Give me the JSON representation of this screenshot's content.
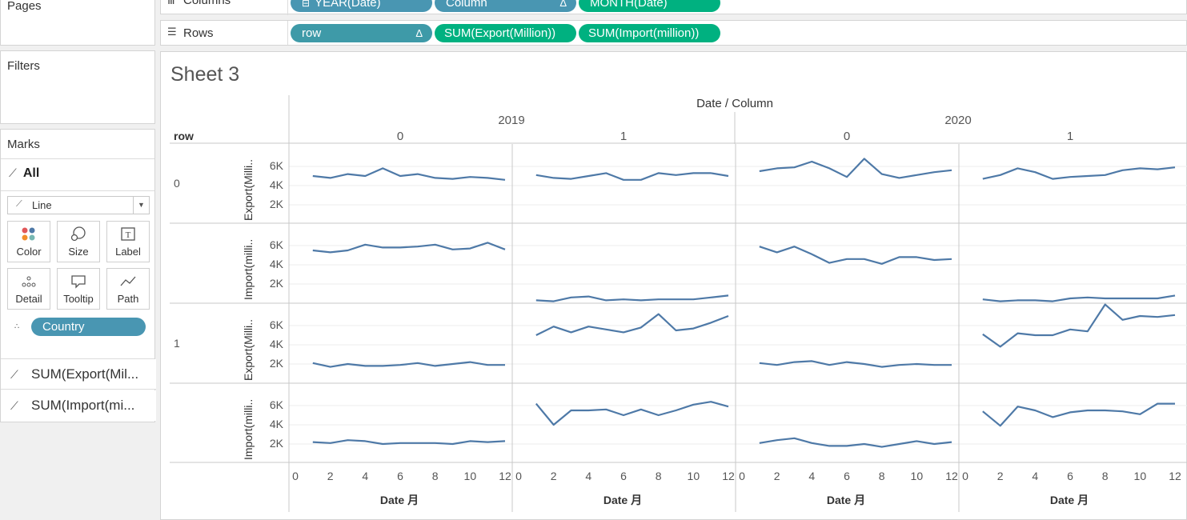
{
  "left_panel": {
    "pages_title": "Pages",
    "filters_title": "Filters",
    "marks_title": "Marks",
    "marks_all": "All",
    "mark_type": "Line",
    "buttons": [
      "Color",
      "Size",
      "Label",
      "Detail",
      "Tooltip",
      "Path"
    ],
    "detail_pill": "Country",
    "measure_items": [
      "SUM(Export(Mil...",
      "SUM(Import(mi..."
    ]
  },
  "shelves": {
    "columns_label": "Columns",
    "columns_pills": [
      "YEAR(Date)",
      "Column",
      "MONTH(Date)"
    ],
    "rows_label": "Rows",
    "rows_pills": [
      "row",
      "SUM(Export(Million))",
      "SUM(Import(million))"
    ],
    "delta_glyph": "Δ"
  },
  "sheet": {
    "title": "Sheet 3",
    "top_header": "Date / Column",
    "years": [
      "2019",
      "2020"
    ],
    "columns": [
      "0",
      "1",
      "0",
      "1"
    ],
    "row_header": "row",
    "rows": [
      "0",
      "1"
    ],
    "axis_titles": [
      "Export(Milli..",
      "Import(milli..",
      "Export(Milli..",
      "Import(milli.."
    ],
    "y_ticks": [
      "6K",
      "4K",
      "2K"
    ],
    "x_ticks": [
      "0",
      "2",
      "4",
      "6",
      "8",
      "10",
      "12"
    ],
    "x_axis_label": "Date 月"
  },
  "colors": {
    "line": "#4e79a7",
    "dimension_pill": "#4996b2",
    "measure_pill": "#00b180"
  },
  "chart_data": {
    "type": "line",
    "x_unit": "month",
    "x": [
      1,
      2,
      3,
      4,
      5,
      6,
      7,
      8,
      9,
      10,
      11,
      12
    ],
    "xlim": [
      0,
      12
    ],
    "panels": [
      {
        "row": "0",
        "measure": "Export",
        "year": "2019",
        "column": "0",
        "values": [
          5000,
          4800,
          5200,
          5000,
          5800,
          5000,
          5200,
          4800,
          4700,
          4900,
          4800,
          4600
        ]
      },
      {
        "row": "0",
        "measure": "Export",
        "year": "2019",
        "column": "1",
        "values": [
          5100,
          4800,
          4700,
          5000,
          5300,
          4600,
          4600,
          5300,
          5100,
          5300,
          5300,
          5000
        ]
      },
      {
        "row": "0",
        "measure": "Export",
        "year": "2020",
        "column": "0",
        "values": [
          5500,
          5800,
          5900,
          6500,
          5800,
          4900,
          6800,
          5200,
          4800,
          5100,
          5400,
          5600
        ]
      },
      {
        "row": "0",
        "measure": "Export",
        "year": "2020",
        "column": "1",
        "values": [
          4700,
          5100,
          5800,
          5400,
          4700,
          4900,
          5000,
          5100,
          5600,
          5800,
          5700,
          5900
        ]
      },
      {
        "row": "0",
        "measure": "Import",
        "year": "2019",
        "column": "0",
        "values": [
          5500,
          5300,
          5500,
          6100,
          5800,
          5800,
          5900,
          6100,
          5600,
          5700,
          6300,
          5600
        ]
      },
      {
        "row": "0",
        "measure": "Import",
        "year": "2019",
        "column": "1",
        "values": [
          300,
          200,
          600,
          700,
          300,
          400,
          300,
          400,
          400,
          400,
          600,
          800
        ]
      },
      {
        "row": "0",
        "measure": "Import",
        "year": "2020",
        "column": "0",
        "values": [
          5900,
          5300,
          5900,
          5100,
          4200,
          4600,
          4600,
          4100,
          4800,
          4800,
          4500,
          4600
        ]
      },
      {
        "row": "0",
        "measure": "Import",
        "year": "2020",
        "column": "1",
        "values": [
          400,
          200,
          300,
          300,
          200,
          500,
          600,
          500,
          500,
          500,
          500,
          800
        ]
      },
      {
        "row": "1",
        "measure": "Export",
        "year": "2019",
        "column": "0",
        "values": [
          2100,
          1700,
          2000,
          1800,
          1800,
          1900,
          2100,
          1800,
          2000,
          2200,
          1900,
          1900
        ]
      },
      {
        "row": "1",
        "measure": "Export",
        "year": "2019",
        "column": "1",
        "values": [
          5000,
          5900,
          5300,
          5900,
          5600,
          5300,
          5800,
          7200,
          5500,
          5700,
          6300,
          7000
        ]
      },
      {
        "row": "1",
        "measure": "Export",
        "year": "2020",
        "column": "0",
        "values": [
          2100,
          1900,
          2200,
          2300,
          1900,
          2200,
          2000,
          1700,
          1900,
          2000,
          1900,
          1900
        ]
      },
      {
        "row": "1",
        "measure": "Export",
        "year": "2020",
        "column": "1",
        "values": [
          5100,
          3800,
          5200,
          5000,
          5000,
          5600,
          5400,
          8200,
          6600,
          7000,
          6900,
          7100
        ]
      },
      {
        "row": "1",
        "measure": "Import",
        "year": "2019",
        "column": "0",
        "values": [
          2200,
          2100,
          2400,
          2300,
          2000,
          2100,
          2100,
          2100,
          2000,
          2300,
          2200,
          2300
        ]
      },
      {
        "row": "1",
        "measure": "Import",
        "year": "2019",
        "column": "1",
        "values": [
          6200,
          4000,
          5500,
          5500,
          5600,
          5000,
          5600,
          5000,
          5500,
          6100,
          6400,
          5900
        ]
      },
      {
        "row": "1",
        "measure": "Import",
        "year": "2020",
        "column": "0",
        "values": [
          2100,
          2400,
          2600,
          2100,
          1800,
          1800,
          2000,
          1700,
          2000,
          2300,
          2000,
          2200
        ]
      },
      {
        "row": "1",
        "measure": "Import",
        "year": "2020",
        "column": "1",
        "values": [
          5400,
          3900,
          5900,
          5500,
          4800,
          5300,
          5500,
          5500,
          5400,
          5100,
          6200,
          6200
        ]
      }
    ]
  }
}
